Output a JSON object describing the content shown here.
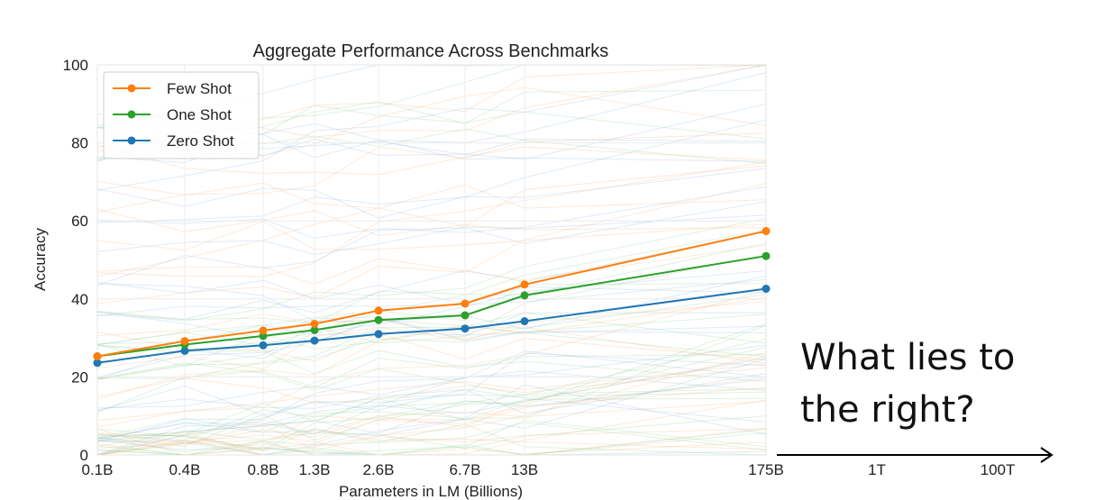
{
  "chart_data": {
    "type": "line",
    "title": "Aggregate Performance Across Benchmarks",
    "xlabel": "Parameters in LM (Billions)",
    "ylabel": "Accuracy",
    "ylim": [
      0,
      100
    ],
    "y_ticks": [
      0,
      20,
      40,
      60,
      80,
      100
    ],
    "categories": [
      "0.1B",
      "0.4B",
      "0.8B",
      "1.3B",
      "2.6B",
      "6.7B",
      "13B",
      "175B"
    ],
    "grid": true,
    "legend_position": "top-left",
    "series": [
      {
        "name": "Few Shot",
        "color": "#ff7f0e",
        "values": [
          25.3,
          29.2,
          31.9,
          33.6,
          37.0,
          38.8,
          43.7,
          57.4
        ]
      },
      {
        "name": "One Shot",
        "color": "#2ca02c",
        "values": [
          25.3,
          28.3,
          30.5,
          32.0,
          34.6,
          35.8,
          40.9,
          51.0
        ]
      },
      {
        "name": "Zero Shot",
        "color": "#1f77b4",
        "values": [
          23.6,
          26.7,
          28.1,
          29.3,
          31.0,
          32.4,
          34.3,
          42.6
        ]
      }
    ],
    "extension_labels": [
      "1T",
      "100T"
    ]
  },
  "annotation": {
    "line1": "What lies to",
    "line2": "the right?"
  }
}
